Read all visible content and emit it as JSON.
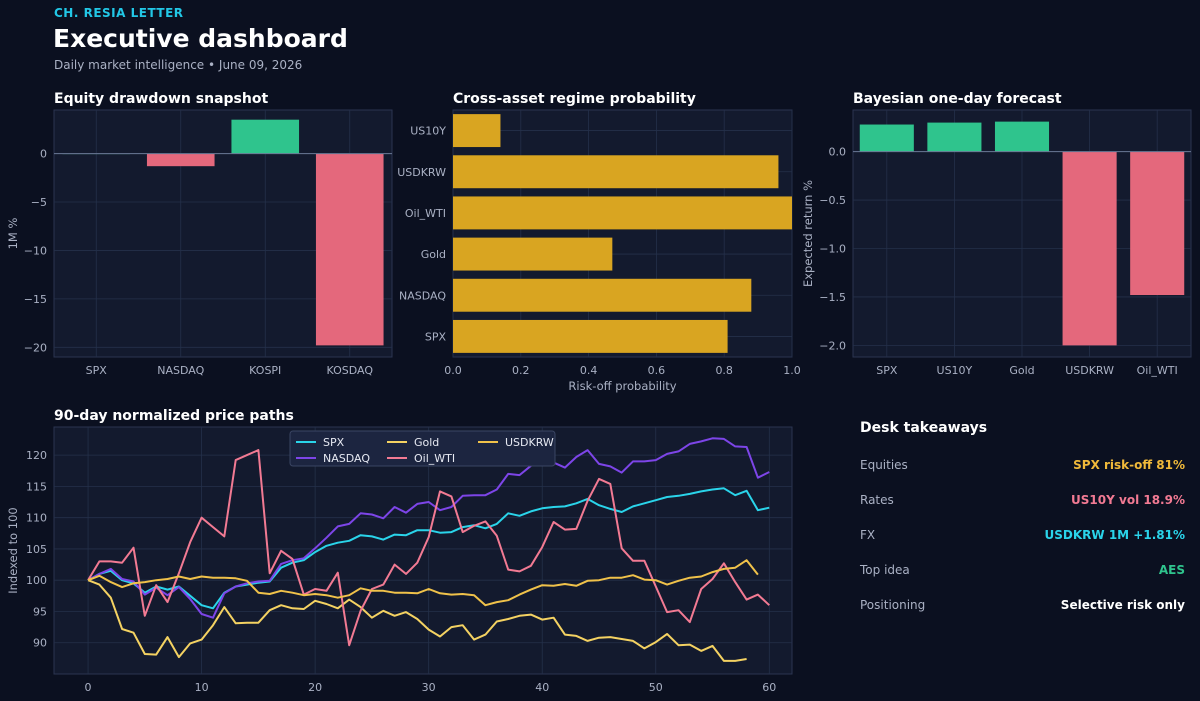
{
  "header": {
    "brand": "CH. RESIA LETTER",
    "title": "Executive dashboard",
    "subtitle": "Daily market intelligence • June 09, 2026"
  },
  "colors": {
    "green": "#2fc48d",
    "red": "#e4687c",
    "gold": "#d9a521",
    "cyan": "#2ad4ea",
    "purple": "#7d45e8",
    "yellow": "#f4d262",
    "pink": "#f27a93",
    "amber": "#f0c24a",
    "white": "#ffffff"
  },
  "chart_data": [
    {
      "id": "drawdown",
      "type": "bar",
      "title": "Equity drawdown snapshot",
      "ylabel": "1M %",
      "xlabel": "",
      "categories": [
        "SPX",
        "NASDAQ",
        "KOSPI",
        "KOSDAQ"
      ],
      "values": [
        0.0,
        -1.3,
        3.5,
        -19.8
      ],
      "ylim": [
        -21,
        4.5
      ],
      "yticks": [
        0,
        -5,
        -10,
        -15,
        -20
      ],
      "yticklabels": [
        "0",
        "−5",
        "−10",
        "−15",
        "−20"
      ],
      "grid": true
    },
    {
      "id": "regime",
      "type": "bar",
      "orientation": "horizontal",
      "title": "Cross-asset regime probability",
      "xlabel": "Risk-off probability",
      "ylabel": "",
      "categories": [
        "US10Y",
        "USDKRW",
        "Oil_WTI",
        "Gold",
        "NASDAQ",
        "SPX"
      ],
      "values": [
        0.14,
        0.96,
        1.0,
        0.47,
        0.88,
        0.81
      ],
      "xlim": [
        0,
        1
      ],
      "xticks": [
        0,
        0.2,
        0.4,
        0.6,
        0.8,
        1.0
      ],
      "xticklabels": [
        "0.0",
        "0.2",
        "0.4",
        "0.6",
        "0.8",
        "1.0"
      ],
      "grid": true
    },
    {
      "id": "forecast",
      "type": "bar",
      "title": "Bayesian one-day forecast",
      "ylabel": "Expected return %",
      "xlabel": "",
      "categories": [
        "SPX",
        "US10Y",
        "Gold",
        "USDKRW",
        "Oil_WTI"
      ],
      "values": [
        0.28,
        0.3,
        0.31,
        -2.0,
        -1.48
      ],
      "ylim": [
        -2.12,
        0.43
      ],
      "yticks": [
        0,
        -0.5,
        -1.0,
        -1.5,
        -2.0
      ],
      "yticklabels": [
        "0.0",
        "−0.5",
        "−1.0",
        "−1.5",
        "−2.0"
      ],
      "grid": true
    },
    {
      "id": "paths",
      "type": "line",
      "title": "90-day normalized price paths",
      "ylabel": "Indexed to 100",
      "xlabel": "",
      "xlim": [
        -3,
        62
      ],
      "ylim": [
        85,
        124.5
      ],
      "xticks": [
        0,
        10,
        20,
        30,
        40,
        50,
        60
      ],
      "yticks": [
        90,
        95,
        100,
        105,
        110,
        115,
        120
      ],
      "legend": "top-center",
      "grid": true,
      "series": [
        {
          "name": "SPX",
          "color": "cyan",
          "values": [
            100,
            101,
            101.5,
            100,
            99.5,
            98,
            99,
            98.5,
            99,
            97.5,
            96,
            95.5,
            98,
            99,
            99.3,
            99.6,
            99.8,
            102,
            102.8,
            103.2,
            104.5,
            105.5,
            106,
            106.3,
            107.2,
            107,
            106.5,
            107.3,
            107.2,
            108,
            108,
            107.6,
            107.7,
            108.5,
            108.8,
            108.3,
            109,
            110.7,
            110.3,
            111,
            111.5,
            111.7,
            111.8,
            112.3,
            113,
            112,
            111.4,
            110.9,
            111.8,
            112.3,
            112.8,
            113.3,
            113.5,
            113.8,
            114.2,
            114.5,
            114.7,
            113.6,
            114.3,
            111.2,
            111.6
          ]
        },
        {
          "name": "NASDAQ",
          "color": "purple",
          "values": [
            100,
            101,
            101.8,
            100.2,
            99.8,
            97.7,
            98.8,
            97.6,
            98.9,
            97,
            94.6,
            94,
            97.9,
            99,
            99.5,
            99.8,
            99.9,
            102.6,
            103.2,
            103.5,
            105.1,
            106.8,
            108.6,
            109,
            110.7,
            110.5,
            109.9,
            111.7,
            110.8,
            112.2,
            112.5,
            111.2,
            111.7,
            113.5,
            113.6,
            113.6,
            114.5,
            117,
            116.8,
            118.3,
            119,
            118.8,
            118,
            119.7,
            120.8,
            118.6,
            118.2,
            117.2,
            119,
            119,
            119.2,
            120.2,
            120.6,
            121.8,
            122.2,
            122.7,
            122.6,
            121.4,
            121.3,
            116.4,
            117.3
          ]
        },
        {
          "name": "Gold",
          "color": "yellow",
          "values": [
            100,
            99.3,
            97.2,
            92.2,
            91.6,
            88.2,
            88.1,
            90.9,
            87.7,
            89.9,
            90.5,
            92.8,
            95.7,
            93.1,
            93.2,
            93.2,
            95.2,
            96,
            95.5,
            95.4,
            96.7,
            96.2,
            95.5,
            96.9,
            95.7,
            94,
            95.1,
            94.3,
            94.9,
            93.8,
            92.1,
            91,
            92.5,
            92.8,
            90.5,
            91.3,
            93.4,
            93.8,
            94.3,
            94.5,
            93.7,
            94,
            91.3,
            91.1,
            90.3,
            90.8,
            90.9,
            90.6,
            90.3,
            89.1,
            90.1,
            91.4,
            89.6,
            89.7,
            88.7,
            89.5,
            87.1,
            87.1,
            87.4
          ]
        },
        {
          "name": "Oil_WTI",
          "color": "pink",
          "values": [
            100,
            103,
            103,
            102.8,
            105.2,
            94.3,
            99.2,
            96.5,
            101.1,
            106.1,
            110,
            108.5,
            107,
            119.2,
            120,
            120.8,
            101.1,
            104.7,
            103.4,
            97.7,
            98.6,
            98.3,
            101.2,
            89.6,
            95.1,
            98.6,
            99.3,
            102.5,
            101,
            102.8,
            106.9,
            114.2,
            113.4,
            107.7,
            108.7,
            109.4,
            107.1,
            101.7,
            101.4,
            102.3,
            105.3,
            109.3,
            108.1,
            108.2,
            112.7,
            116.2,
            115.4,
            105.1,
            103.1,
            103.1,
            99,
            94.9,
            95.2,
            93.3,
            98.6,
            100.2,
            102.7,
            99.7,
            96.9,
            97.7,
            96
          ]
        },
        {
          "name": "USDKRW",
          "color": "amber",
          "values": [
            100,
            100.7,
            99.7,
            98.9,
            99.5,
            99.7,
            100,
            100.2,
            100.6,
            100.2,
            100.6,
            100.4,
            100.4,
            100.3,
            99.9,
            98,
            97.8,
            98.3,
            98,
            97.6,
            97.8,
            97.6,
            97.2,
            97.6,
            98.7,
            98.3,
            98.3,
            98,
            98,
            97.9,
            98.6,
            97.9,
            97.7,
            97.8,
            97.6,
            96,
            96.5,
            96.8,
            97.7,
            98.5,
            99.2,
            99.1,
            99.4,
            99.1,
            99.9,
            100,
            100.4,
            100.4,
            100.8,
            100.1,
            100,
            99.3,
            99.9,
            100.4,
            100.6,
            101.3,
            101.8,
            102,
            103.2,
            100.9
          ]
        }
      ]
    }
  ],
  "takeaways": {
    "title": "Desk takeaways",
    "rows": [
      {
        "label": "Equities",
        "value": "SPX risk-off 81%",
        "color": "#f0b93a"
      },
      {
        "label": "Rates",
        "value": "US10Y vol 18.9%",
        "color": "#f27a93"
      },
      {
        "label": "FX",
        "value": "USDKRW 1M +1.81%",
        "color": "#2ad4ea"
      },
      {
        "label": "Top idea",
        "value": "AES",
        "color": "#2fc48d"
      },
      {
        "label": "Positioning",
        "value": "Selective risk only",
        "color": "#ffffff"
      }
    ]
  }
}
